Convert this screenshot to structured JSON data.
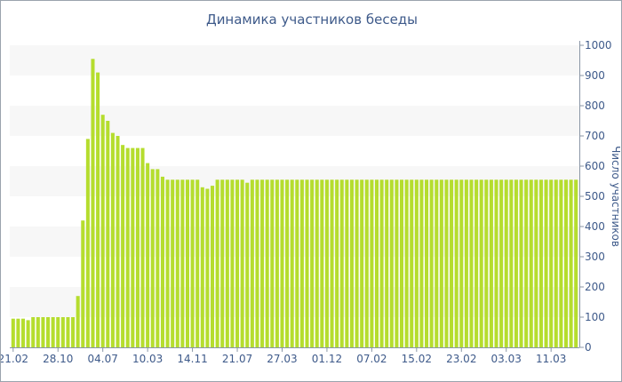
{
  "chart_data": {
    "type": "bar",
    "title": "Динамика участников беседы",
    "ylabel": "Число участников",
    "ylim": [
      0,
      1000
    ],
    "yticks": [
      0,
      100,
      200,
      300,
      400,
      500,
      600,
      700,
      800,
      900,
      1000
    ],
    "y_axis_position": "right",
    "xtick_labels": [
      {
        "i": 0,
        "label": "21.02"
      },
      {
        "i": 9,
        "label": "28.10"
      },
      {
        "i": 18,
        "label": "04.07"
      },
      {
        "i": 27,
        "label": "10.03"
      },
      {
        "i": 36,
        "label": "14.11"
      },
      {
        "i": 45,
        "label": "21.07"
      },
      {
        "i": 54,
        "label": "27.03"
      },
      {
        "i": 63,
        "label": "01.12"
      },
      {
        "i": 72,
        "label": "07.02"
      },
      {
        "i": 81,
        "label": "15.02"
      },
      {
        "i": 90,
        "label": "23.02"
      },
      {
        "i": 99,
        "label": "03.03"
      },
      {
        "i": 108,
        "label": "11.03"
      }
    ],
    "series": [
      {
        "color": "#b5dd2e",
        "values": [
          95,
          95,
          95,
          90,
          100,
          100,
          100,
          100,
          100,
          100,
          100,
          100,
          100,
          170,
          420,
          690,
          955,
          910,
          770,
          750,
          710,
          700,
          670,
          660,
          660,
          660,
          660,
          610,
          590,
          590,
          565,
          555,
          555,
          555,
          555,
          555,
          555,
          555,
          530,
          525,
          535,
          555,
          555,
          555,
          555,
          555,
          555,
          545,
          555,
          555,
          555,
          555,
          555,
          555,
          555,
          555,
          555,
          555,
          555,
          555,
          555,
          555,
          555,
          555,
          555,
          555,
          555,
          555,
          555,
          555,
          555,
          555,
          555,
          555,
          555,
          555,
          555,
          555,
          555,
          555,
          555,
          555,
          555,
          555,
          555,
          555,
          555,
          555,
          555,
          555,
          555,
          555,
          555,
          555,
          555,
          555,
          555,
          555,
          555,
          555,
          555,
          555,
          555,
          555,
          555,
          555,
          555,
          555,
          555,
          555,
          555,
          555,
          555,
          555
        ]
      }
    ],
    "grid": true,
    "band_colors": [
      "#f7f7f7",
      "#ffffff"
    ]
  }
}
